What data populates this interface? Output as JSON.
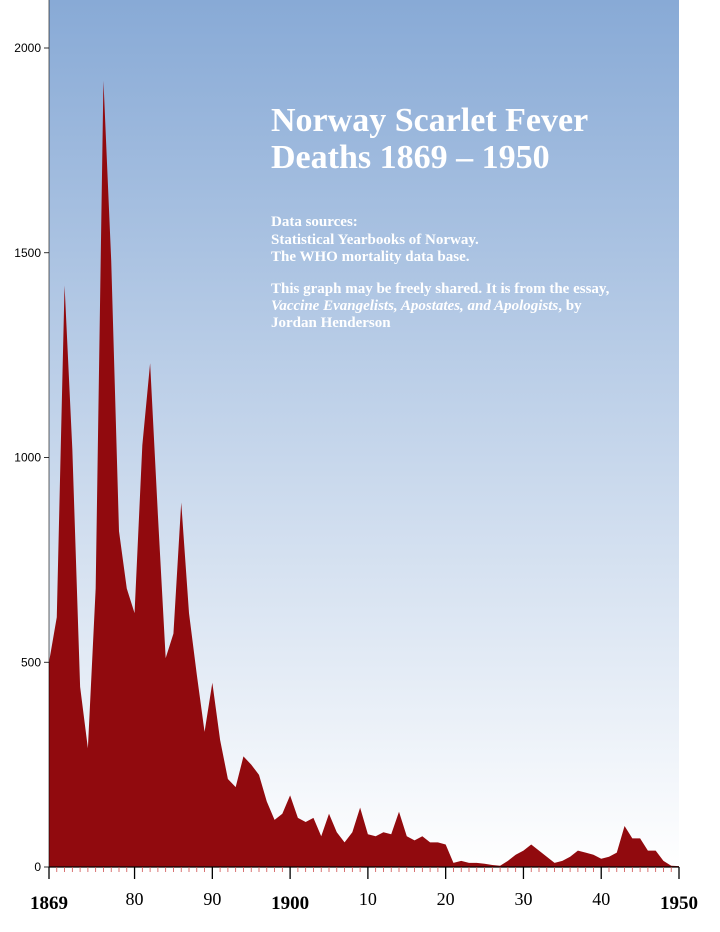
{
  "chart_data": {
    "type": "area",
    "title_lines": [
      "Norway Scarlet Fever",
      "Deaths 1869 – 1950"
    ],
    "notes": {
      "sources_heading": "Data sources:",
      "source_1": "Statistical Yearbooks of Norway.",
      "source_2": "The WHO mortality data base.",
      "share_line_1": "This graph may be freely shared. It is from the essay,",
      "share_line_2_italic": "Vaccine Evangelists, Apostates, and Apologists",
      "share_line_2_rest": ", by",
      "share_line_3": "Jordan Henderson"
    },
    "xlim": [
      1869,
      1950
    ],
    "ylim": [
      0,
      2000
    ],
    "y_ticks": [
      "0",
      "500",
      "1000",
      "1500",
      "2000"
    ],
    "x_tick_labels": [
      {
        "year": 1869,
        "label": "1869",
        "bold": true
      },
      {
        "year": 1880,
        "label": "80",
        "bold": false
      },
      {
        "year": 1890,
        "label": "90",
        "bold": false
      },
      {
        "year": 1900,
        "label": "1900",
        "bold": true
      },
      {
        "year": 1910,
        "label": "10",
        "bold": false
      },
      {
        "year": 1920,
        "label": "20",
        "bold": false
      },
      {
        "year": 1930,
        "label": "30",
        "bold": false
      },
      {
        "year": 1940,
        "label": "40",
        "bold": false
      },
      {
        "year": 1950,
        "label": "1950",
        "bold": true
      }
    ],
    "series": [
      {
        "fill_color": "#910a0e",
        "x": [
          1869,
          1870,
          1871,
          1872,
          1873,
          1874,
          1875,
          1876,
          1877,
          1878,
          1879,
          1880,
          1881,
          1882,
          1883,
          1884,
          1885,
          1886,
          1887,
          1888,
          1889,
          1890,
          1891,
          1892,
          1893,
          1894,
          1895,
          1896,
          1897,
          1898,
          1899,
          1900,
          1901,
          1902,
          1903,
          1904,
          1905,
          1906,
          1907,
          1908,
          1909,
          1910,
          1911,
          1912,
          1913,
          1914,
          1915,
          1916,
          1917,
          1918,
          1919,
          1920,
          1921,
          1922,
          1923,
          1924,
          1925,
          1926,
          1927,
          1928,
          1929,
          1930,
          1931,
          1932,
          1933,
          1934,
          1935,
          1936,
          1937,
          1938,
          1939,
          1940,
          1941,
          1942,
          1943,
          1944,
          1945,
          1946,
          1947,
          1948,
          1949,
          1950
        ],
        "y": [
          500,
          610,
          1420,
          1020,
          440,
          290,
          680,
          1920,
          1480,
          820,
          680,
          620,
          1030,
          1230,
          860,
          510,
          570,
          890,
          620,
          470,
          330,
          450,
          310,
          215,
          195,
          270,
          250,
          225,
          160,
          115,
          130,
          175,
          120,
          110,
          120,
          75,
          130,
          85,
          60,
          85,
          145,
          80,
          75,
          85,
          80,
          135,
          75,
          65,
          75,
          60,
          60,
          55,
          10,
          15,
          10,
          10,
          8,
          5,
          3,
          15,
          30,
          40,
          55,
          40,
          25,
          10,
          15,
          25,
          40,
          35,
          30,
          20,
          25,
          35,
          100,
          70,
          70,
          40,
          40,
          15,
          3,
          2
        ]
      }
    ],
    "background_gradient": {
      "top": "#88aad6",
      "bottom": "#ffffff"
    },
    "axis_color": "#000000"
  }
}
